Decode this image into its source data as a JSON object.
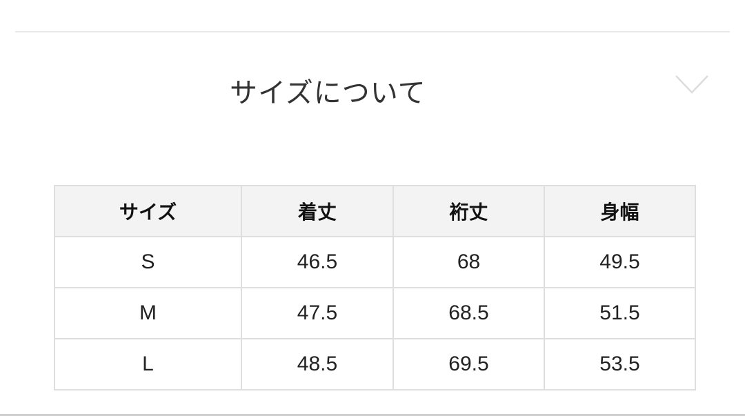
{
  "section": {
    "title": "サイズについて",
    "toggle_icon": "chevron-down-icon"
  },
  "size_table": {
    "headers": [
      "サイズ",
      "着丈",
      "裄丈",
      "身幅"
    ],
    "rows": [
      [
        "S",
        "46.5",
        "68",
        "49.5"
      ],
      [
        "M",
        "47.5",
        "68.5",
        "51.5"
      ],
      [
        "L",
        "48.5",
        "69.5",
        "53.5"
      ]
    ]
  }
}
